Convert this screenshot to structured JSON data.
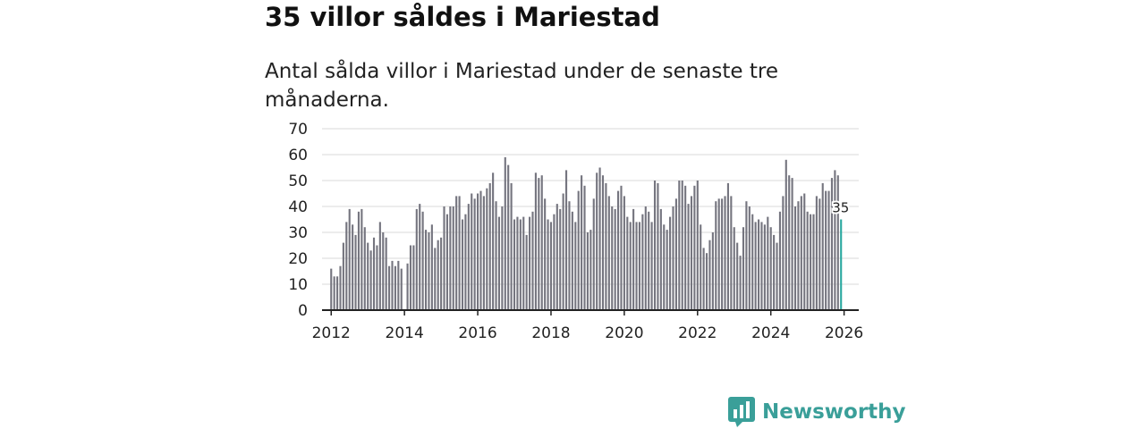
{
  "title": "35 villor såldes i Mariestad",
  "subtitle": "Antal sålda villor i Mariestad under de senaste tre månaderna.",
  "brand": {
    "name": "Newsworthy",
    "color": "#3a9f99"
  },
  "colors": {
    "bar": "#75757f",
    "highlight": "#2aa8a0",
    "grid": "#d9d9d9",
    "axis": "#222222"
  },
  "chart_data": {
    "type": "bar",
    "title": "35 villor såldes i Mariestad",
    "xlabel": "",
    "ylabel": "",
    "ylim": [
      0,
      70
    ],
    "yticks": [
      0,
      10,
      20,
      30,
      40,
      50,
      60,
      70
    ],
    "xticks": [
      "2012",
      "2014",
      "2016",
      "2018",
      "2020",
      "2022",
      "2024",
      "2026"
    ],
    "xrange": [
      2011.75,
      2026.4
    ],
    "grid": true,
    "frequency": "monthly",
    "start": "2012-01",
    "last_value_label": "35",
    "values": [
      16,
      13,
      13,
      17,
      26,
      34,
      39,
      33,
      29,
      38,
      39,
      32,
      26,
      23,
      28,
      25,
      34,
      30,
      28,
      17,
      19,
      17,
      19,
      16,
      0,
      18,
      25,
      25,
      39,
      41,
      38,
      31,
      30,
      33,
      24,
      27,
      28,
      40,
      37,
      40,
      40,
      44,
      44,
      35,
      37,
      41,
      45,
      43,
      45,
      46,
      44,
      47,
      49,
      53,
      42,
      36,
      40,
      59,
      56,
      49,
      35,
      36,
      35,
      36,
      29,
      36,
      38,
      53,
      51,
      52,
      43,
      35,
      34,
      37,
      41,
      39,
      45,
      54,
      42,
      38,
      34,
      46,
      52,
      48,
      30,
      31,
      43,
      53,
      55,
      52,
      49,
      44,
      40,
      39,
      46,
      48,
      44,
      36,
      34,
      39,
      34,
      34,
      37,
      40,
      38,
      34,
      50,
      49,
      39,
      33,
      31,
      36,
      40,
      43,
      50,
      50,
      48,
      41,
      44,
      48,
      50,
      33,
      24,
      22,
      27,
      30,
      42,
      43,
      43,
      44,
      49,
      44,
      32,
      26,
      21,
      32,
      42,
      40,
      37,
      34,
      35,
      34,
      33,
      36,
      32,
      29,
      26,
      38,
      44,
      58,
      52,
      51,
      40,
      42,
      44,
      45,
      38,
      37,
      37,
      44,
      43,
      49,
      46,
      46,
      51,
      54,
      52,
      35
    ]
  }
}
